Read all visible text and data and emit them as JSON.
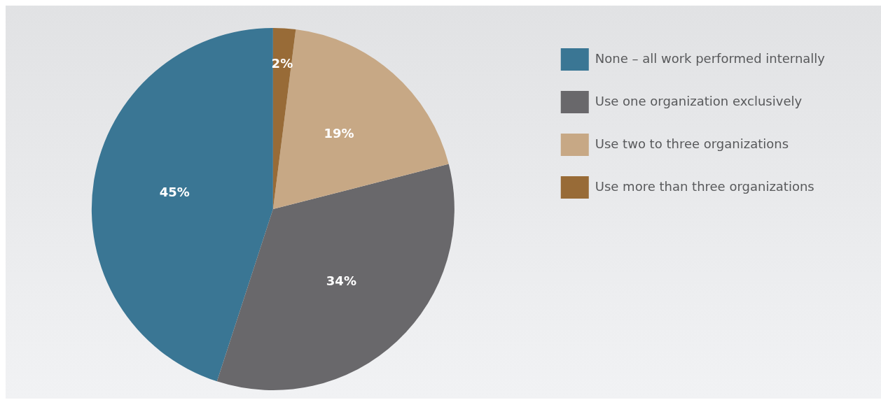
{
  "chart_data": {
    "type": "pie",
    "categories": [
      "None – all work performed internally",
      "Use one organization exclusively",
      "Use two to three organizations",
      "Use more than three organizations"
    ],
    "values": [
      45,
      34,
      19,
      2
    ],
    "colors": [
      "#3a7694",
      "#69686b",
      "#c7a885",
      "#986b37"
    ],
    "value_labels": [
      "45%",
      "34%",
      "19%",
      "2%"
    ],
    "legend": "right"
  }
}
